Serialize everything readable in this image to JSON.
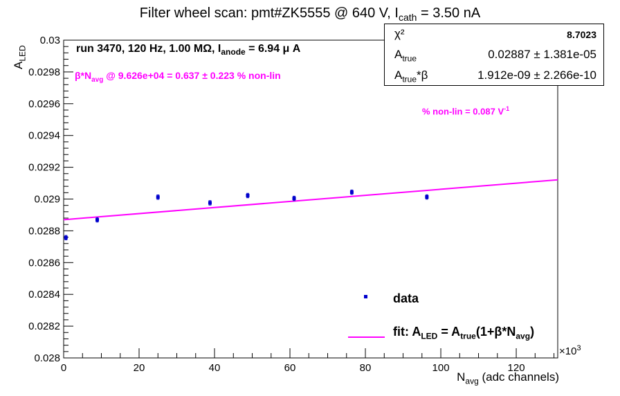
{
  "title": {
    "main": "Filter wheel scan: pmt#ZK5555 @   640 V, I",
    "sub": "cath",
    "tail": " = 3.50 nA"
  },
  "stats_box": {
    "chi2_label": "χ²",
    "chi2_value": "8.7023",
    "atrue_label": "A",
    "atrue_sub": "true",
    "atrue_value": "0.02887 ± 1.381e-05",
    "atrue_beta_label_a": "A",
    "atrue_beta_sub": "true",
    "atrue_beta_label_b": "*β",
    "atrue_beta_value": "1.912e-09 ± 2.266e-10"
  },
  "annotations": {
    "run_a": "run 3470, 120 Hz, 1.00 MΩ, I",
    "run_sub": "anode",
    "run_b": " = 6.94 μ A",
    "beta_a": "β*N",
    "beta_sub": "avg",
    "beta_b": " @ 9.626e+04 = 0.637 ± 0.223 % non-lin",
    "nonlin_a": "% non-lin = 0.087 V",
    "nonlin_sup": "-1"
  },
  "legend": {
    "data_label": "data",
    "fit_a": "fit: A",
    "fit_sub1": "LED",
    "fit_b": " = A",
    "fit_sub2": "true",
    "fit_c": "(1+β*N",
    "fit_sub3": "avg",
    "fit_d": ")"
  },
  "axes": {
    "xlabel_a": "N",
    "xlabel_sub": "avg",
    "xlabel_b": " (adc channels)",
    "x_exponent_a": "×10",
    "x_exponent_sup": "3",
    "ylabel_a": "A",
    "ylabel_sub": "LED"
  },
  "chart_data": {
    "type": "scatter",
    "xlim": [
      0,
      131
    ],
    "ylim": [
      0.028,
      0.03
    ],
    "x_ticks": [
      0,
      20,
      40,
      60,
      80,
      100,
      120
    ],
    "x_tick_labels": [
      "0",
      "20",
      "40",
      "60",
      "80",
      "100",
      "120"
    ],
    "y_ticks": [
      0.028,
      0.0282,
      0.0284,
      0.0286,
      0.0288,
      0.029,
      0.0292,
      0.0294,
      0.0296,
      0.0298,
      0.03
    ],
    "y_tick_labels": [
      "0.028",
      "0.0282",
      "0.0284",
      "0.0286",
      "0.0288",
      "0.029",
      "0.0292",
      "0.0294",
      "0.0296",
      "0.0298",
      "0.03"
    ],
    "series": [
      {
        "name": "data",
        "color": "#0000cc",
        "x": [
          0.6,
          8.9,
          25.0,
          38.8,
          48.8,
          61.1,
          76.4,
          96.3
        ],
        "y": [
          0.028757,
          0.028869,
          0.029012,
          0.028976,
          0.029022,
          0.029004,
          0.029043,
          0.029013
        ],
        "yerr": [
          1.4e-05,
          1.4e-05,
          1.4e-05,
          1.4e-05,
          1.4e-05,
          1.4e-05,
          1.4e-05,
          1.4e-05
        ]
      },
      {
        "name": "fit: A_LED = A_true(1+β*N_avg)",
        "color": "#ff00ff",
        "type": "line",
        "x": [
          0,
          131
        ],
        "y": [
          0.02887,
          0.029121
        ]
      }
    ],
    "grid": false,
    "legend_position": "bottom-right"
  }
}
